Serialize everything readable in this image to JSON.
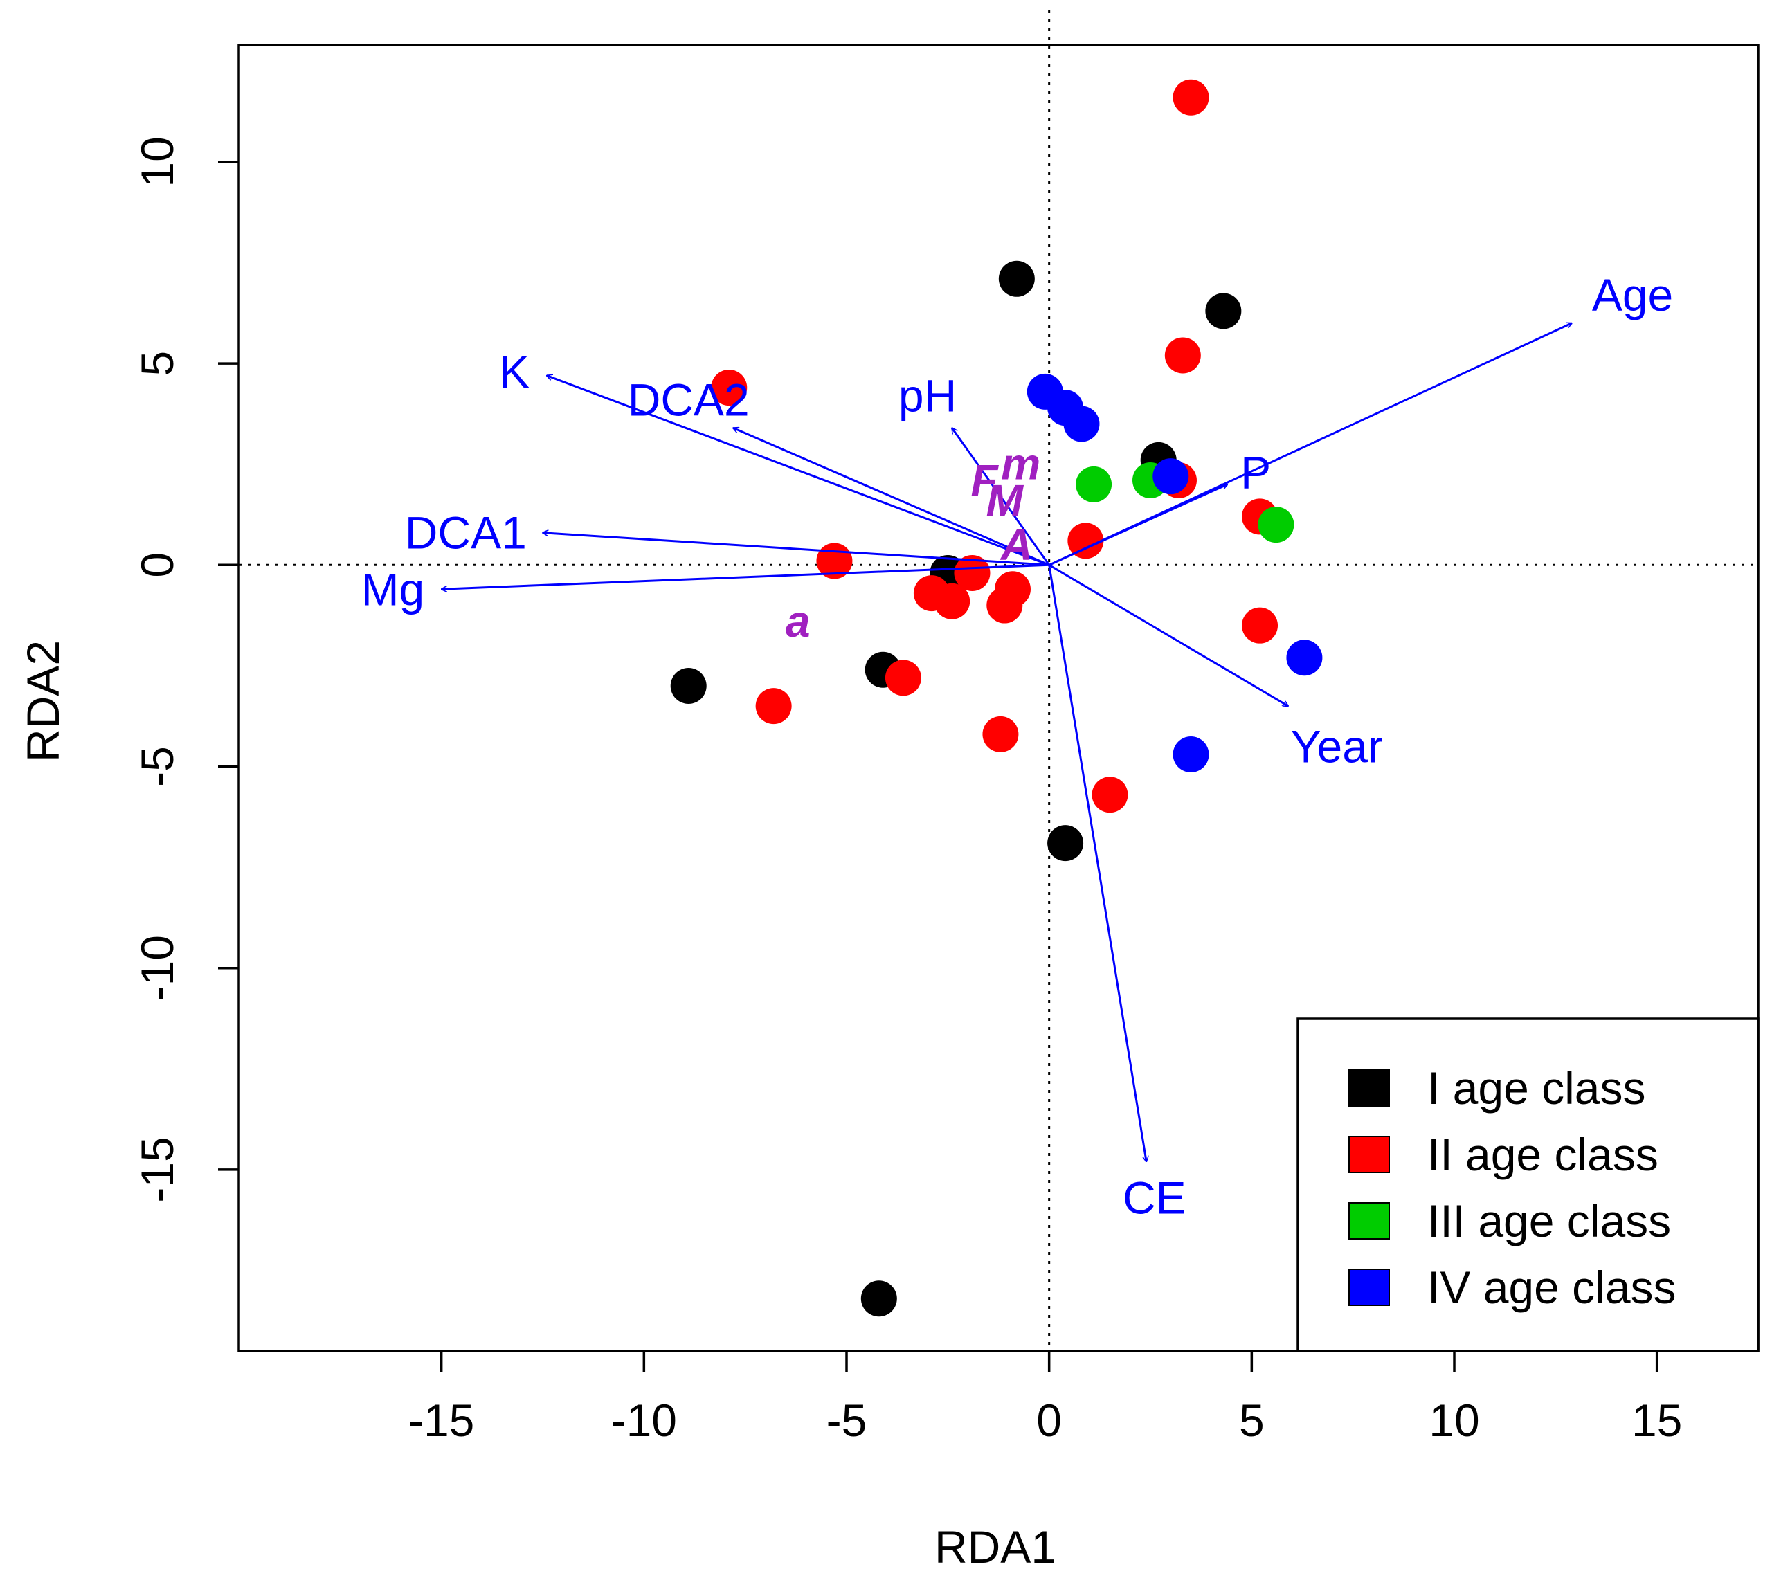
{
  "chart_data": {
    "type": "scatter",
    "title": "",
    "xlabel": "RDA1",
    "ylabel": "RDA2",
    "xlim": [
      -20,
      17.5
    ],
    "ylim": [
      -19.5,
      12.9
    ],
    "xticks": [
      -15,
      -10,
      -5,
      0,
      5,
      10,
      15
    ],
    "yticks": [
      -15,
      -10,
      -5,
      0,
      5,
      10
    ],
    "reference_lines": {
      "x": 0,
      "y": 0,
      "style": "dotted"
    },
    "legend": {
      "position": "bottom-right",
      "entries": [
        {
          "label": "I age class",
          "color": "#000000"
        },
        {
          "label": "II age class",
          "color": "#ff0000"
        },
        {
          "label": "III age class",
          "color": "#00cc00"
        },
        {
          "label": "IV age class",
          "color": "#0000ff"
        }
      ]
    },
    "series": [
      {
        "name": "I age class",
        "color": "#000000",
        "points": [
          [
            -0.8,
            7.1
          ],
          [
            4.3,
            6.3
          ],
          [
            2.7,
            2.6
          ],
          [
            -8.9,
            -3.0
          ],
          [
            -4.1,
            -2.6
          ],
          [
            -2.5,
            -0.2
          ],
          [
            0.4,
            -6.9
          ],
          [
            -4.2,
            -18.2
          ]
        ]
      },
      {
        "name": "II age class",
        "color": "#ff0000",
        "points": [
          [
            3.5,
            11.6
          ],
          [
            3.3,
            5.2
          ],
          [
            -7.9,
            4.4
          ],
          [
            3.2,
            2.1
          ],
          [
            5.2,
            1.2
          ],
          [
            0.9,
            0.6
          ],
          [
            -5.3,
            0.1
          ],
          [
            -1.9,
            -0.2
          ],
          [
            -2.9,
            -0.7
          ],
          [
            -2.4,
            -0.9
          ],
          [
            -0.9,
            -0.6
          ],
          [
            -1.1,
            -1.0
          ],
          [
            -3.6,
            -2.8
          ],
          [
            -6.8,
            -3.5
          ],
          [
            5.2,
            -1.5
          ],
          [
            -1.2,
            -4.2
          ],
          [
            1.5,
            -5.7
          ]
        ]
      },
      {
        "name": "III age class",
        "color": "#00cc00",
        "points": [
          [
            1.1,
            2.0
          ],
          [
            2.5,
            2.1
          ],
          [
            5.6,
            1.0
          ]
        ]
      },
      {
        "name": "IV age class",
        "color": "#0000ff",
        "points": [
          [
            -0.1,
            4.3
          ],
          [
            0.4,
            3.9
          ],
          [
            0.8,
            3.5
          ],
          [
            3.0,
            2.2
          ],
          [
            6.3,
            -2.3
          ],
          [
            3.5,
            -4.7
          ]
        ]
      }
    ],
    "vectors": [
      {
        "label": "Age",
        "x": 12.9,
        "y": 6.0,
        "label_x": 14.4,
        "label_y": 6.7
      },
      {
        "label": "K",
        "x": -12.4,
        "y": 4.7,
        "label_x": -13.2,
        "label_y": 4.8
      },
      {
        "label": "DCA2",
        "x": -7.8,
        "y": 3.4,
        "label_x": -8.9,
        "label_y": 4.1
      },
      {
        "label": "pH",
        "x": -2.4,
        "y": 3.4,
        "label_x": -3.0,
        "label_y": 4.2
      },
      {
        "label": "P",
        "x": 4.4,
        "y": 2.0,
        "label_x": 5.1,
        "label_y": 2.3
      },
      {
        "label": "DCA1",
        "x": -12.5,
        "y": 0.8,
        "label_x": -14.4,
        "label_y": 0.8
      },
      {
        "label": "Mg",
        "x": -15.0,
        "y": -0.6,
        "label_x": -16.2,
        "label_y": -0.6
      },
      {
        "label": "Year",
        "x": 5.9,
        "y": -3.5,
        "label_x": 7.1,
        "label_y": -4.5
      },
      {
        "label": "CE",
        "x": 2.4,
        "y": -14.8,
        "label_x": 2.6,
        "label_y": -15.7
      }
    ],
    "centroid_labels": [
      {
        "label": "F",
        "x": -1.6,
        "y": 2.1
      },
      {
        "label": "m",
        "x": -0.7,
        "y": 2.5
      },
      {
        "label": "M",
        "x": -1.1,
        "y": 1.6
      },
      {
        "label": "A",
        "x": -0.8,
        "y": 0.5
      },
      {
        "label": "a",
        "x": -6.2,
        "y": -1.4
      }
    ]
  }
}
